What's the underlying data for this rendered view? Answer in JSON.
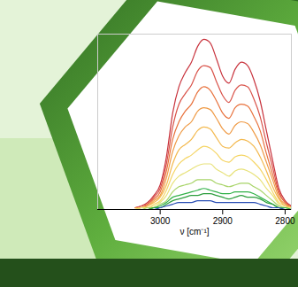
{
  "chart_data": {
    "type": "line",
    "x_label": "ν [cm⁻¹]",
    "x": [
      3040,
      3030,
      3020,
      3010,
      3000,
      2990,
      2980,
      2970,
      2960,
      2950,
      2940,
      2930,
      2920,
      2910,
      2900,
      2890,
      2880,
      2870,
      2860,
      2850,
      2840,
      2830,
      2820,
      2810,
      2800,
      2790
    ],
    "xlim": [
      3100,
      2790
    ],
    "xticks": [
      3000,
      2900,
      2800
    ],
    "ylim": [
      0,
      1
    ],
    "tick_labels": "x",
    "series": [
      {
        "color": "#c8323c",
        "values": [
          0.01,
          0.02,
          0.04,
          0.08,
          0.14,
          0.3,
          0.55,
          0.7,
          0.78,
          0.84,
          0.93,
          0.97,
          0.95,
          0.86,
          0.76,
          0.72,
          0.8,
          0.84,
          0.82,
          0.74,
          0.62,
          0.45,
          0.28,
          0.12,
          0.05,
          0.02
        ]
      },
      {
        "color": "#d9534a",
        "values": [
          0.01,
          0.02,
          0.03,
          0.07,
          0.12,
          0.26,
          0.47,
          0.6,
          0.66,
          0.71,
          0.79,
          0.82,
          0.81,
          0.73,
          0.65,
          0.61,
          0.68,
          0.71,
          0.7,
          0.63,
          0.53,
          0.38,
          0.24,
          0.1,
          0.04,
          0.02
        ]
      },
      {
        "color": "#e8713c",
        "values": [
          0.01,
          0.01,
          0.03,
          0.06,
          0.1,
          0.22,
          0.4,
          0.5,
          0.56,
          0.6,
          0.67,
          0.7,
          0.68,
          0.62,
          0.55,
          0.52,
          0.58,
          0.6,
          0.59,
          0.53,
          0.45,
          0.32,
          0.2,
          0.09,
          0.04,
          0.01
        ]
      },
      {
        "color": "#ef9a45",
        "values": [
          0.01,
          0.01,
          0.02,
          0.05,
          0.08,
          0.18,
          0.33,
          0.42,
          0.47,
          0.5,
          0.56,
          0.58,
          0.57,
          0.52,
          0.46,
          0.43,
          0.48,
          0.5,
          0.49,
          0.44,
          0.37,
          0.27,
          0.17,
          0.07,
          0.03,
          0.01
        ]
      },
      {
        "color": "#f3b94f",
        "values": [
          0,
          0.01,
          0.02,
          0.04,
          0.07,
          0.14,
          0.26,
          0.34,
          0.37,
          0.4,
          0.45,
          0.47,
          0.46,
          0.41,
          0.36,
          0.35,
          0.38,
          0.4,
          0.39,
          0.36,
          0.3,
          0.22,
          0.13,
          0.06,
          0.02,
          0.01
        ]
      },
      {
        "color": "#f5d565",
        "values": [
          0,
          0.01,
          0.01,
          0.03,
          0.05,
          0.11,
          0.2,
          0.26,
          0.29,
          0.31,
          0.34,
          0.36,
          0.35,
          0.32,
          0.28,
          0.27,
          0.3,
          0.31,
          0.3,
          0.27,
          0.23,
          0.17,
          0.1,
          0.04,
          0.02,
          0.01
        ]
      },
      {
        "color": "#e8e27a",
        "values": [
          0,
          0.01,
          0.01,
          0.02,
          0.04,
          0.08,
          0.15,
          0.19,
          0.21,
          0.23,
          0.25,
          0.26,
          0.26,
          0.23,
          0.21,
          0.19,
          0.22,
          0.23,
          0.22,
          0.2,
          0.17,
          0.12,
          0.08,
          0.03,
          0.01,
          0.01
        ]
      },
      {
        "color": "#a8d468",
        "values": [
          0,
          0,
          0.01,
          0.01,
          0.03,
          0.05,
          0.1,
          0.13,
          0.14,
          0.15,
          0.17,
          0.17,
          0.17,
          0.15,
          0.14,
          0.13,
          0.14,
          0.15,
          0.15,
          0.13,
          0.11,
          0.08,
          0.05,
          0.02,
          0.01,
          0
        ]
      },
      {
        "color": "#33b24a",
        "values": [
          0,
          0,
          0,
          0.01,
          0.02,
          0.04,
          0.07,
          0.08,
          0.09,
          0.1,
          0.11,
          0.12,
          0.11,
          0.1,
          0.09,
          0.09,
          0.1,
          0.1,
          0.1,
          0.09,
          0.07,
          0.05,
          0.03,
          0.01,
          0.01,
          0
        ]
      },
      {
        "color": "#2e9e3e",
        "values": [
          0,
          0,
          0,
          0.01,
          0.01,
          0.03,
          0.05,
          0.06,
          0.07,
          0.08,
          0.08,
          0.09,
          0.09,
          0.08,
          0.07,
          0.06,
          0.07,
          0.08,
          0.07,
          0.07,
          0.06,
          0.04,
          0.03,
          0.01,
          0,
          0
        ]
      },
      {
        "color": "#2b4fb5",
        "values": [
          0,
          0,
          0,
          0,
          0.01,
          0.02,
          0.03,
          0.04,
          0.04,
          0.04,
          0.05,
          0.05,
          0.05,
          0.04,
          0.04,
          0.04,
          0.04,
          0.04,
          0.04,
          0.04,
          0.03,
          0.02,
          0.01,
          0.01,
          0,
          0
        ]
      }
    ]
  }
}
